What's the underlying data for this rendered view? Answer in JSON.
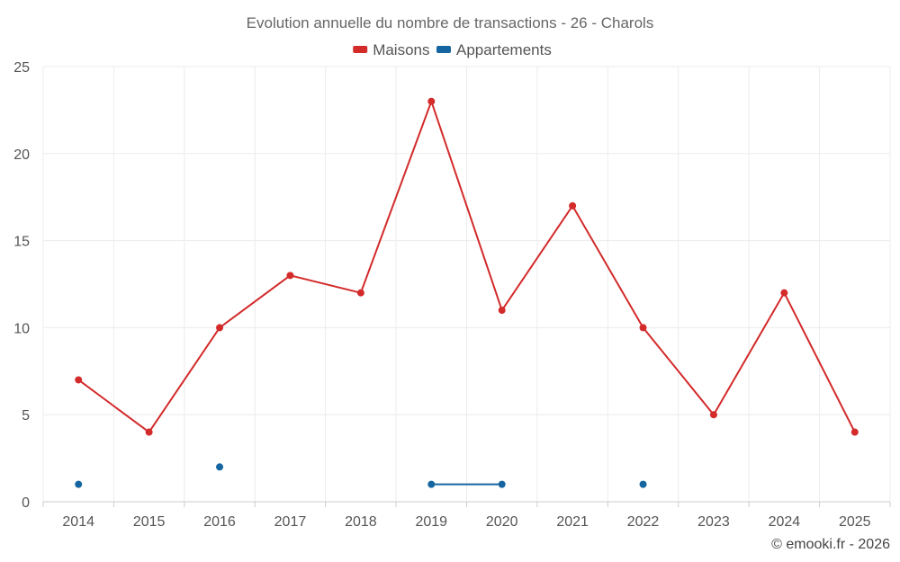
{
  "chart_data": {
    "type": "line",
    "title": "Evolution annuelle du nombre de transactions - 26 - Charols",
    "categories": [
      "2014",
      "2015",
      "2016",
      "2017",
      "2018",
      "2019",
      "2020",
      "2021",
      "2022",
      "2023",
      "2024",
      "2025"
    ],
    "ylim": [
      0,
      25
    ],
    "yticks": [
      0,
      5,
      10,
      15,
      20,
      25
    ],
    "grid": true,
    "legend_position": "top-center",
    "series": [
      {
        "name": "Maisons",
        "color": "#d32a2a",
        "values": [
          7,
          4,
          10,
          13,
          12,
          23,
          11,
          17,
          10,
          5,
          12,
          4
        ]
      },
      {
        "name": "Appartements",
        "color": "#1565a0",
        "values": [
          1,
          null,
          2,
          null,
          null,
          1,
          1,
          null,
          1,
          null,
          null,
          null
        ]
      }
    ],
    "credit": "© emooki.fr - 2026"
  }
}
